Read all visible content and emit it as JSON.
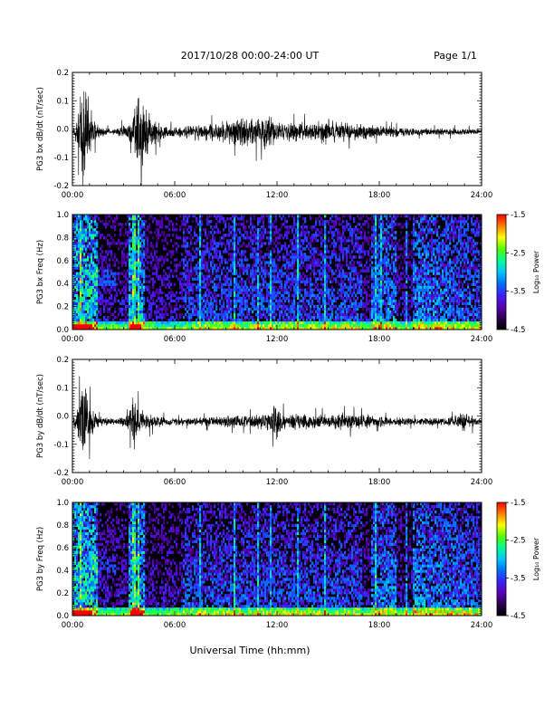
{
  "header": {
    "title": "2017/10/28  00:00-24:00 UT",
    "page": "Page 1/1"
  },
  "footer": {
    "xlabel": "Universal Time (hh:mm)"
  },
  "colormap": {
    "stops": [
      "#000000",
      "#2a0050",
      "#5a00b8",
      "#3a20ff",
      "#0070ff",
      "#00c8ff",
      "#00ff90",
      "#50ff00",
      "#ffff00",
      "#ff8000",
      "#ff0000"
    ],
    "background": "#000000"
  },
  "chart_data": [
    {
      "type": "line",
      "ylabel": "PG3 bx dB/dt (nT/sec)",
      "xlim": [
        0,
        24
      ],
      "ylim": [
        -0.2,
        0.2
      ],
      "xticks": [
        "00:00",
        "06:00",
        "12:00",
        "18:00",
        "24:00"
      ],
      "yticks": [
        "-0.2",
        "-0.1",
        "0.0",
        "0.1",
        "0.2"
      ],
      "series": [
        {
          "x_hours": [
            0,
            0.3,
            0.5,
            0.7,
            0.9,
            1.2,
            1.6,
            2.5,
            3.5,
            3.8,
            4.1,
            4.3,
            4.6,
            5.2,
            6.0,
            7.0,
            8.0,
            9.0,
            10.0,
            10.5,
            11.0,
            11.5,
            12.0,
            13.0,
            14.0,
            15.0,
            16.0,
            17.0,
            18.0,
            19.0,
            20.0,
            21.0,
            22.0,
            23.0,
            24.0
          ],
          "y_amplitude": [
            0.01,
            0.05,
            0.2,
            0.22,
            0.15,
            0.06,
            0.02,
            0.01,
            0.05,
            0.19,
            0.14,
            0.11,
            0.07,
            0.03,
            0.02,
            0.03,
            0.035,
            0.045,
            0.06,
            0.07,
            0.06,
            0.07,
            0.04,
            0.04,
            0.04,
            0.05,
            0.04,
            0.03,
            0.025,
            0.02,
            0.015,
            0.015,
            0.015,
            0.015,
            0.01
          ],
          "baseline": -0.01
        }
      ]
    },
    {
      "type": "heatmap",
      "ylabel": "PG3 bx Freq (Hz)",
      "xlim": [
        0,
        24
      ],
      "ylim": [
        0,
        1.0
      ],
      "xticks": [
        "00:00",
        "06:00",
        "12:00",
        "18:00",
        "24:00"
      ],
      "yticks": [
        "0.0",
        "0.2",
        "0.4",
        "0.6",
        "0.8",
        "1.0"
      ],
      "colorbar": {
        "label": "Log₁₀ Power",
        "range": [
          -4.5,
          -1.5
        ],
        "ticks": [
          "-1.5",
          "-2.5",
          "-3.5",
          "-4.5"
        ]
      },
      "bright_columns_hours": [
        0.5,
        3.6,
        3.9,
        7.5,
        9.5,
        10.9,
        11.6,
        13.2,
        14.8,
        17.8,
        18.1,
        19.6
      ],
      "seed": 11
    },
    {
      "type": "line",
      "ylabel": "PG3 by dB/dt (nT/sec)",
      "xlim": [
        0,
        24
      ],
      "ylim": [
        -0.2,
        0.2
      ],
      "xticks": [
        "00:00",
        "06:00",
        "12:00",
        "18:00",
        "24:00"
      ],
      "yticks": [
        "-0.2",
        "-0.1",
        "0.0",
        "0.1",
        "0.2"
      ],
      "series": [
        {
          "x_hours": [
            0,
            0.3,
            0.5,
            0.7,
            0.9,
            1.2,
            1.6,
            2.5,
            3.3,
            3.6,
            3.9,
            4.3,
            4.8,
            5.4,
            6.0,
            7.0,
            8.0,
            9.0,
            10.0,
            11.0,
            11.5,
            12.0,
            12.5,
            13.0,
            14.0,
            15.0,
            16.0,
            17.0,
            18.0,
            19.0,
            20.0,
            21.0,
            22.0,
            23.0,
            24.0
          ],
          "y_amplitude": [
            0.01,
            0.06,
            0.13,
            0.18,
            0.1,
            0.05,
            0.02,
            0.01,
            0.03,
            0.12,
            0.06,
            0.04,
            0.025,
            0.02,
            0.015,
            0.015,
            0.02,
            0.025,
            0.025,
            0.03,
            0.04,
            0.07,
            0.03,
            0.035,
            0.03,
            0.03,
            0.035,
            0.03,
            0.02,
            0.02,
            0.015,
            0.015,
            0.015,
            0.04,
            0.01
          ],
          "baseline": -0.02
        }
      ]
    },
    {
      "type": "heatmap",
      "ylabel": "PG3 by Freq (Hz)",
      "xlim": [
        0,
        24
      ],
      "ylim": [
        0,
        1.0
      ],
      "xticks": [
        "00:00",
        "06:00",
        "12:00",
        "18:00",
        "24:00"
      ],
      "yticks": [
        "0.0",
        "0.2",
        "0.4",
        "0.6",
        "0.8",
        "1.0"
      ],
      "colorbar": {
        "label": "Log₁₀ Power",
        "range": [
          -4.5,
          -1.5
        ],
        "ticks": [
          "-1.5",
          "-2.5",
          "-3.5",
          "-4.5"
        ]
      },
      "bright_columns_hours": [
        0.5,
        3.6,
        3.9,
        7.5,
        9.5,
        10.9,
        11.6,
        13.2,
        14.8,
        17.8,
        19.6
      ],
      "seed": 23
    }
  ]
}
